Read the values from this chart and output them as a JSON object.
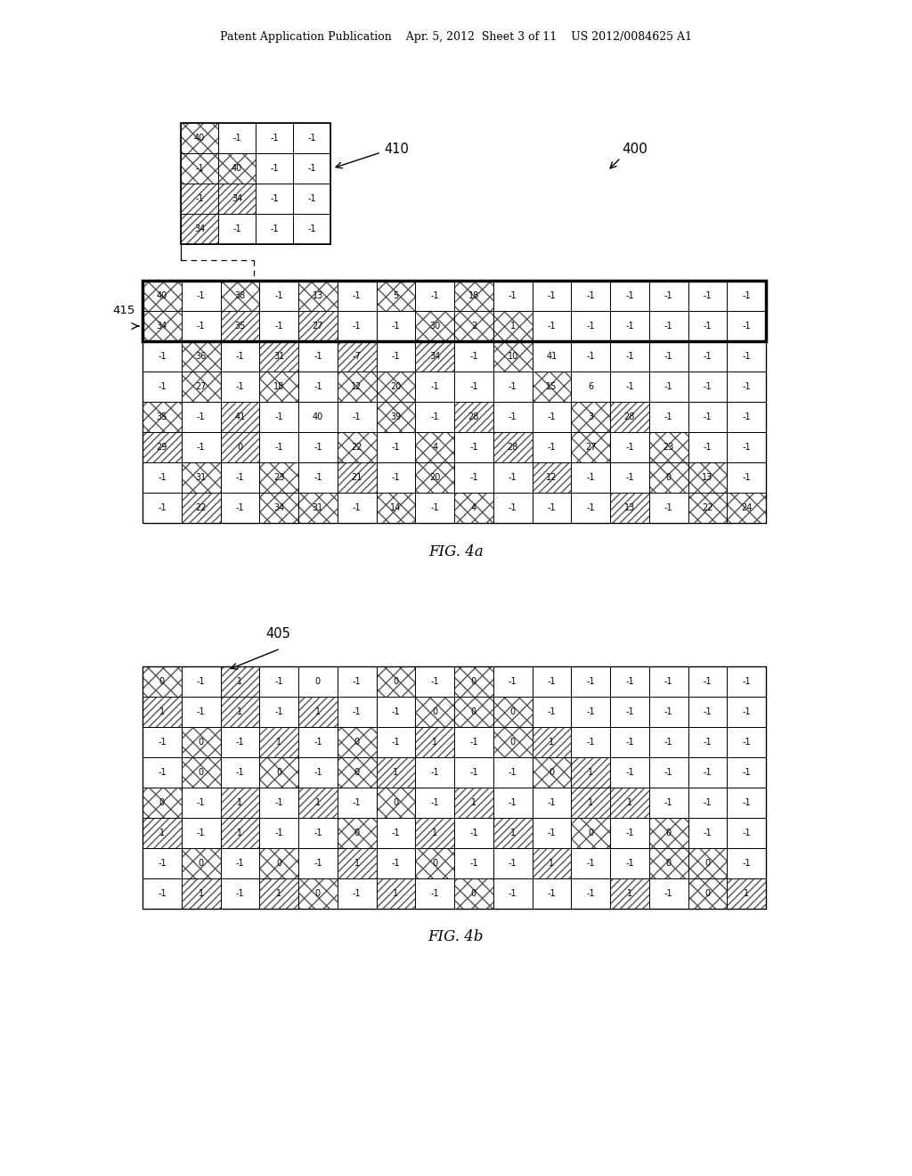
{
  "header": "Patent Application Publication    Apr. 5, 2012  Sheet 3 of 11    US 2012/0084625 A1",
  "fig4a_label": "FIG. 4a",
  "fig4b_label": "FIG. 4b",
  "small_matrix": [
    [
      40,
      -1,
      -1,
      -1
    ],
    [
      -1,
      40,
      -1,
      -1
    ],
    [
      -1,
      34,
      -1,
      -1
    ],
    [
      34,
      -1,
      -1,
      -1
    ]
  ],
  "small_hatch": [
    [
      "xx",
      "",
      "",
      ""
    ],
    [
      "xx",
      "xx",
      "",
      ""
    ],
    [
      "//",
      "//",
      "",
      ""
    ],
    [
      "//",
      "",
      "",
      ""
    ]
  ],
  "matrix_a": [
    [
      40,
      -1,
      38,
      -1,
      13,
      -1,
      5,
      -1,
      18,
      -1,
      -1,
      -1,
      -1,
      -1,
      -1,
      -1
    ],
    [
      34,
      -1,
      35,
      -1,
      27,
      -1,
      -1,
      30,
      2,
      1,
      -1,
      -1,
      -1,
      -1,
      -1,
      -1
    ],
    [
      -1,
      36,
      -1,
      31,
      -1,
      -7,
      -1,
      34,
      -1,
      10,
      41,
      -1,
      -1,
      -1,
      -1,
      -1
    ],
    [
      -1,
      27,
      -1,
      18,
      -1,
      12,
      20,
      -1,
      -1,
      -1,
      15,
      6,
      -1,
      -1,
      -1,
      -1
    ],
    [
      35,
      -1,
      41,
      -1,
      40,
      -1,
      39,
      -1,
      28,
      -1,
      -1,
      3,
      28,
      -1,
      -1,
      -1
    ],
    [
      29,
      -1,
      0,
      -1,
      -1,
      22,
      -1,
      4,
      -1,
      28,
      -1,
      27,
      -1,
      23,
      -1,
      -1
    ],
    [
      -1,
      31,
      -1,
      23,
      -1,
      21,
      -1,
      20,
      -1,
      -1,
      12,
      -1,
      -1,
      0,
      13,
      -1
    ],
    [
      -1,
      22,
      -1,
      34,
      31,
      -1,
      14,
      -1,
      4,
      -1,
      -1,
      -1,
      13,
      -1,
      22,
      24
    ]
  ],
  "matrix_a_hatch": [
    [
      "xx",
      "",
      "xx",
      "",
      "xx",
      "",
      "xx",
      "",
      "xx",
      "",
      "",
      "",
      "",
      "",
      "",
      ""
    ],
    [
      "xx",
      "",
      "//",
      "",
      "//",
      "",
      "",
      "xx",
      "xx",
      "xx",
      "",
      "",
      "",
      "",
      "",
      ""
    ],
    [
      "",
      "xx",
      "",
      "//",
      "",
      "//",
      "",
      "//",
      "",
      "xx",
      "",
      "",
      "",
      "",
      "",
      ""
    ],
    [
      "",
      "xx",
      "",
      "xx",
      "",
      "xx",
      "xx",
      "",
      "",
      "",
      "xx",
      "",
      "",
      "",
      "",
      ""
    ],
    [
      "xx",
      "",
      "//",
      "",
      "",
      "",
      "xx",
      "",
      "//",
      "",
      "",
      "xx",
      "//",
      "",
      "",
      ""
    ],
    [
      "//",
      "",
      "//",
      "",
      "",
      "xx",
      "",
      "xx",
      "",
      "//",
      "",
      "xx",
      "",
      "xx",
      "",
      ""
    ],
    [
      "",
      "xx",
      "",
      "xx",
      "",
      "//",
      "",
      "xx",
      "",
      "",
      "//",
      "",
      "",
      "xx",
      "xx",
      ""
    ],
    [
      "",
      "//",
      "",
      "xx",
      "xx",
      "",
      "xx",
      "",
      "xx",
      "",
      "",
      "",
      "//",
      "",
      "xx",
      "xx"
    ]
  ],
  "matrix_b": [
    [
      0,
      -1,
      1,
      -1,
      0,
      -1,
      0,
      -1,
      0,
      -1,
      -1,
      -1,
      -1,
      -1,
      -1,
      -1
    ],
    [
      1,
      -1,
      1,
      -1,
      1,
      -1,
      -1,
      0,
      0,
      0,
      -1,
      -1,
      -1,
      -1,
      -1,
      -1
    ],
    [
      -1,
      0,
      -1,
      1,
      -1,
      0,
      -1,
      1,
      -1,
      0,
      1,
      -1,
      -1,
      -1,
      -1,
      -1
    ],
    [
      -1,
      0,
      -1,
      0,
      -1,
      0,
      1,
      -1,
      -1,
      -1,
      0,
      1,
      -1,
      -1,
      -1,
      -1
    ],
    [
      0,
      -1,
      1,
      -1,
      1,
      -1,
      0,
      -1,
      1,
      -1,
      -1,
      1,
      1,
      -1,
      -1,
      -1
    ],
    [
      1,
      -1,
      1,
      -1,
      -1,
      0,
      -1,
      1,
      -1,
      1,
      -1,
      0,
      -1,
      0,
      -1,
      -1
    ],
    [
      -1,
      0,
      -1,
      0,
      -1,
      1,
      -1,
      0,
      -1,
      -1,
      1,
      -1,
      -1,
      0,
      0,
      -1
    ],
    [
      -1,
      1,
      -1,
      1,
      0,
      -1,
      1,
      -1,
      0,
      -1,
      -1,
      -1,
      1,
      -1,
      0,
      1
    ]
  ],
  "matrix_b_hatch": [
    [
      "xx",
      "",
      "//",
      "",
      "",
      "",
      "xx",
      "",
      "xx",
      "",
      "",
      "",
      "",
      "",
      "",
      ""
    ],
    [
      "//",
      "",
      "//",
      "",
      "//",
      "",
      "",
      "xx",
      "xx",
      "xx",
      "",
      "",
      "",
      "",
      "",
      ""
    ],
    [
      "",
      "xx",
      "",
      "//",
      "",
      "xx",
      "",
      "//",
      "",
      "xx",
      "//",
      "",
      "",
      "",
      "",
      ""
    ],
    [
      "",
      "xx",
      "",
      "xx",
      "",
      "xx",
      "//",
      "",
      "",
      "",
      "xx",
      "//",
      "",
      "",
      "",
      ""
    ],
    [
      "xx",
      "",
      "//",
      "",
      "//",
      "",
      "xx",
      "",
      "//",
      "",
      "",
      "//",
      "//",
      "",
      "",
      ""
    ],
    [
      "//",
      "",
      "//",
      "",
      "",
      "xx",
      "",
      "//",
      "",
      "//",
      "",
      "xx",
      "",
      "xx",
      "",
      ""
    ],
    [
      "",
      "xx",
      "",
      "xx",
      "",
      "//",
      "",
      "xx",
      "",
      "",
      "//",
      "",
      "",
      "xx",
      "xx",
      ""
    ],
    [
      "",
      "//",
      "",
      "//",
      "xx",
      "",
      "//",
      "",
      "xx",
      "",
      "",
      "",
      "//",
      "",
      "xx",
      "//"
    ]
  ]
}
